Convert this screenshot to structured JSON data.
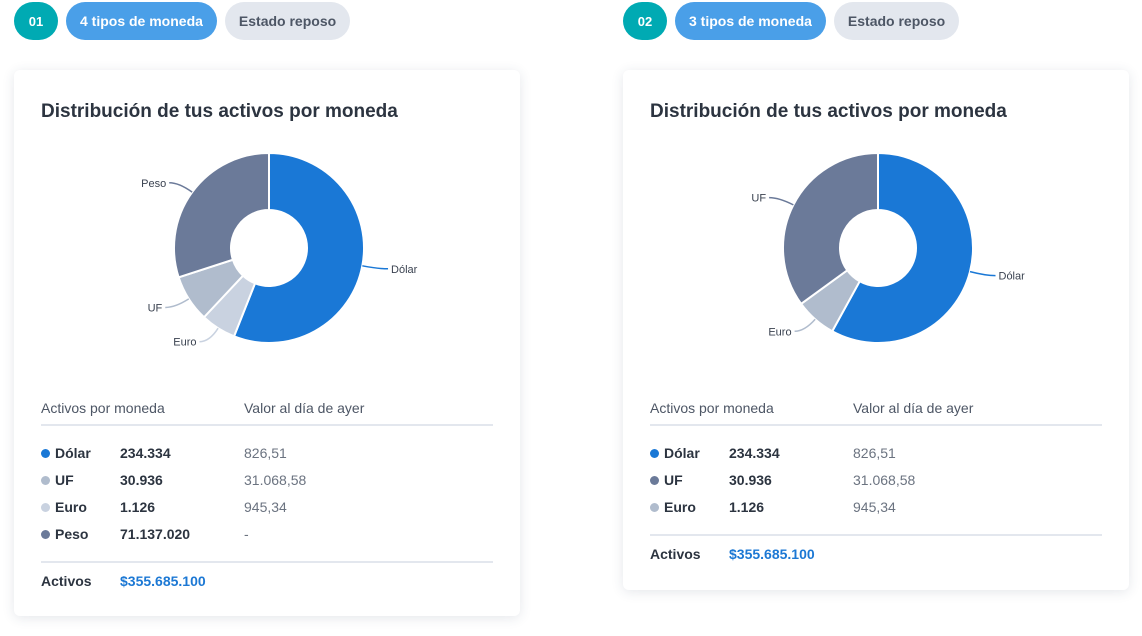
{
  "panels": [
    {
      "number": "01",
      "variant_label": "4 tipos de moneda",
      "state_label": "Estado reposo",
      "title": "Distribución de tus activos por moneda",
      "table": {
        "col1": "Activos por moneda",
        "col2": "Valor al día de ayer",
        "rows": [
          {
            "name": "Dólar",
            "amount": "234.334",
            "value": "826,51",
            "color": "#1a78d6"
          },
          {
            "name": "UF",
            "amount": "30.936",
            "value": "31.068,58",
            "color": "#b0bccd"
          },
          {
            "name": "Euro",
            "amount": "1.126",
            "value": "945,34",
            "color": "#c9d2e0"
          },
          {
            "name": "Peso",
            "amount": "71.137.020",
            "value": "-",
            "color": "#6b7a99"
          }
        ],
        "total_label": "Activos",
        "total_value": "$355.685.100"
      }
    },
    {
      "number": "02",
      "variant_label": "3 tipos de moneda",
      "state_label": "Estado reposo",
      "title": "Distribución de tus activos por moneda",
      "table": {
        "col1": "Activos por moneda",
        "col2": "Valor al día de ayer",
        "rows": [
          {
            "name": "Dólar",
            "amount": "234.334",
            "value": "826,51",
            "color": "#1a78d6"
          },
          {
            "name": "UF",
            "amount": "30.936",
            "value": "31.068,58",
            "color": "#6b7a99"
          },
          {
            "name": "Euro",
            "amount": "1.126",
            "value": "945,34",
            "color": "#b0bccd"
          }
        ],
        "total_label": "Activos",
        "total_value": "$355.685.100"
      }
    }
  ],
  "chart_data": [
    {
      "type": "pie",
      "categories": [
        "Dólar",
        "Euro",
        "UF",
        "Peso"
      ],
      "values": [
        56,
        6,
        8,
        30
      ],
      "colors": [
        "#1a78d6",
        "#c9d2e0",
        "#b0bccd",
        "#6b7a99"
      ],
      "legend": "callout-labels"
    },
    {
      "type": "pie",
      "categories": [
        "Dólar",
        "Euro",
        "UF"
      ],
      "values": [
        58,
        7,
        35
      ],
      "colors": [
        "#1a78d6",
        "#b0bccd",
        "#6b7a99"
      ],
      "legend": "callout-labels"
    }
  ]
}
